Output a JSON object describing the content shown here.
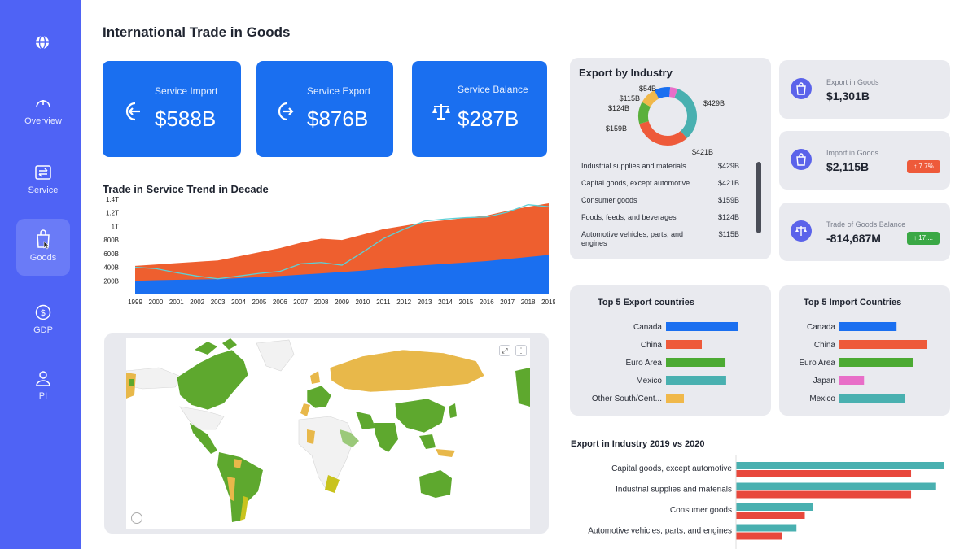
{
  "sidebar": {
    "items": [
      {
        "label": "Overview",
        "icon": "gauge-icon"
      },
      {
        "label": "Service",
        "icon": "exchange-icon"
      },
      {
        "label": "Goods",
        "icon": "shopping-bag-icon",
        "active": true
      },
      {
        "label": "GDP",
        "icon": "dollar-icon"
      },
      {
        "label": "PI",
        "icon": "person-icon"
      }
    ]
  },
  "page": {
    "title": "International Trade in Goods"
  },
  "kpis": [
    {
      "label": "Service Import",
      "value": "$588B"
    },
    {
      "label": "Service Export",
      "value": "$876B"
    },
    {
      "label": "Service Balance",
      "value": "$287B"
    }
  ],
  "trend": {
    "title": "Trade in Service Trend in Decade"
  },
  "export_by_industry": {
    "title": "Export by Industry",
    "donut_labels": [
      "$54B",
      "$115B",
      "$124B",
      "$159B",
      "$421B",
      "$429B"
    ],
    "list": [
      {
        "name": "Industrial supplies and materials",
        "value": "$429B"
      },
      {
        "name": "Capital goods, except automotive",
        "value": "$421B"
      },
      {
        "name": "Consumer goods",
        "value": "$159B"
      },
      {
        "name": "Foods, feeds, and beverages",
        "value": "$124B"
      },
      {
        "name": "Automotive vehicles, parts, and engines",
        "value": "$115B"
      }
    ]
  },
  "stats": [
    {
      "label": "Export in Goods",
      "value": "$1,301B"
    },
    {
      "label": "Import in Goods",
      "value": "$2,115B",
      "badge": "↑ 7.7%",
      "badge_color": "#ee5a3a"
    },
    {
      "label": "Trade of Goods Balance",
      "value": "-814,687M",
      "badge": "↑ 17....",
      "badge_color": "#3aa845"
    }
  ],
  "top_export": {
    "title": "Top 5 Export countries"
  },
  "top_import": {
    "title": "Top 5 Import Countries"
  },
  "industry_compare": {
    "title": "Export in Industry 2019 vs 2020"
  },
  "chart_data": [
    {
      "type": "area",
      "title": "Trade in Service Trend in Decade",
      "x": [
        "1999",
        "2000",
        "2001",
        "2002",
        "2003",
        "2004",
        "2005",
        "2006",
        "2007",
        "2008",
        "2009",
        "2010",
        "2011",
        "2012",
        "2013",
        "2014",
        "2015",
        "2016",
        "2017",
        "2018",
        "2019"
      ],
      "y_ticks": [
        "200B",
        "400B",
        "600B",
        "800B",
        "1T",
        "1.2T",
        "1.4T"
      ],
      "ylim": [
        0,
        1400
      ],
      "series": [
        {
          "color": "#1a6ff0",
          "values": [
            200,
            210,
            215,
            220,
            225,
            240,
            255,
            270,
            290,
            310,
            330,
            350,
            380,
            410,
            430,
            450,
            470,
            490,
            520,
            550,
            580
          ]
        },
        {
          "color": "#ee5f2f",
          "values": [
            420,
            440,
            460,
            480,
            500,
            560,
            620,
            680,
            760,
            820,
            800,
            880,
            960,
            1010,
            1060,
            1090,
            1130,
            1160,
            1230,
            1290,
            1340
          ]
        },
        {
          "color": "#5dd0d6",
          "type": "line",
          "values": [
            400,
            380,
            320,
            270,
            230,
            270,
            310,
            340,
            450,
            470,
            430,
            620,
            820,
            960,
            1080,
            1110,
            1130,
            1140,
            1210,
            1320,
            1290
          ]
        }
      ]
    },
    {
      "type": "pie",
      "title": "Export by Industry",
      "labels": [
        "$429B",
        "$421B",
        "$159B",
        "$124B",
        "$115B",
        "$54B"
      ],
      "values": [
        429,
        421,
        159,
        124,
        115,
        54
      ],
      "colors": [
        "#49b0b0",
        "#ee5a3a",
        "#5ab03c",
        "#f0b84a",
        "#1a6ff0",
        "#e86ec8"
      ]
    },
    {
      "type": "bar",
      "title": "Top 5 Export countries",
      "categories": [
        "Canada",
        "China",
        "Euro Area",
        "Mexico",
        "Other South/Cent..."
      ],
      "values": [
        100,
        50,
        83,
        84,
        25
      ],
      "colors": [
        "#1a6ff0",
        "#ee5a3a",
        "#4caa33",
        "#49b0b0",
        "#f0b84a"
      ]
    },
    {
      "type": "bar",
      "title": "Top 5 Import Countries",
      "categories": [
        "Canada",
        "China",
        "Euro Area",
        "Japan",
        "Mexico"
      ],
      "values": [
        65,
        100,
        84,
        28,
        75
      ],
      "colors": [
        "#1a6ff0",
        "#ee5a3a",
        "#4caa33",
        "#e86ec8",
        "#49b0b0"
      ]
    },
    {
      "type": "bar",
      "title": "Export in Industry 2019 vs 2020",
      "categories": [
        "Capital goods, except automotive",
        "Industrial supplies and materials",
        "Consumer goods",
        "Automotive vehicles, parts, and engines"
      ],
      "series": [
        {
          "color": "#49b0b0",
          "values": [
            100,
            96,
            37,
            29
          ]
        },
        {
          "color": "#e8483c",
          "values": [
            84,
            84,
            33,
            22
          ]
        }
      ]
    }
  ]
}
